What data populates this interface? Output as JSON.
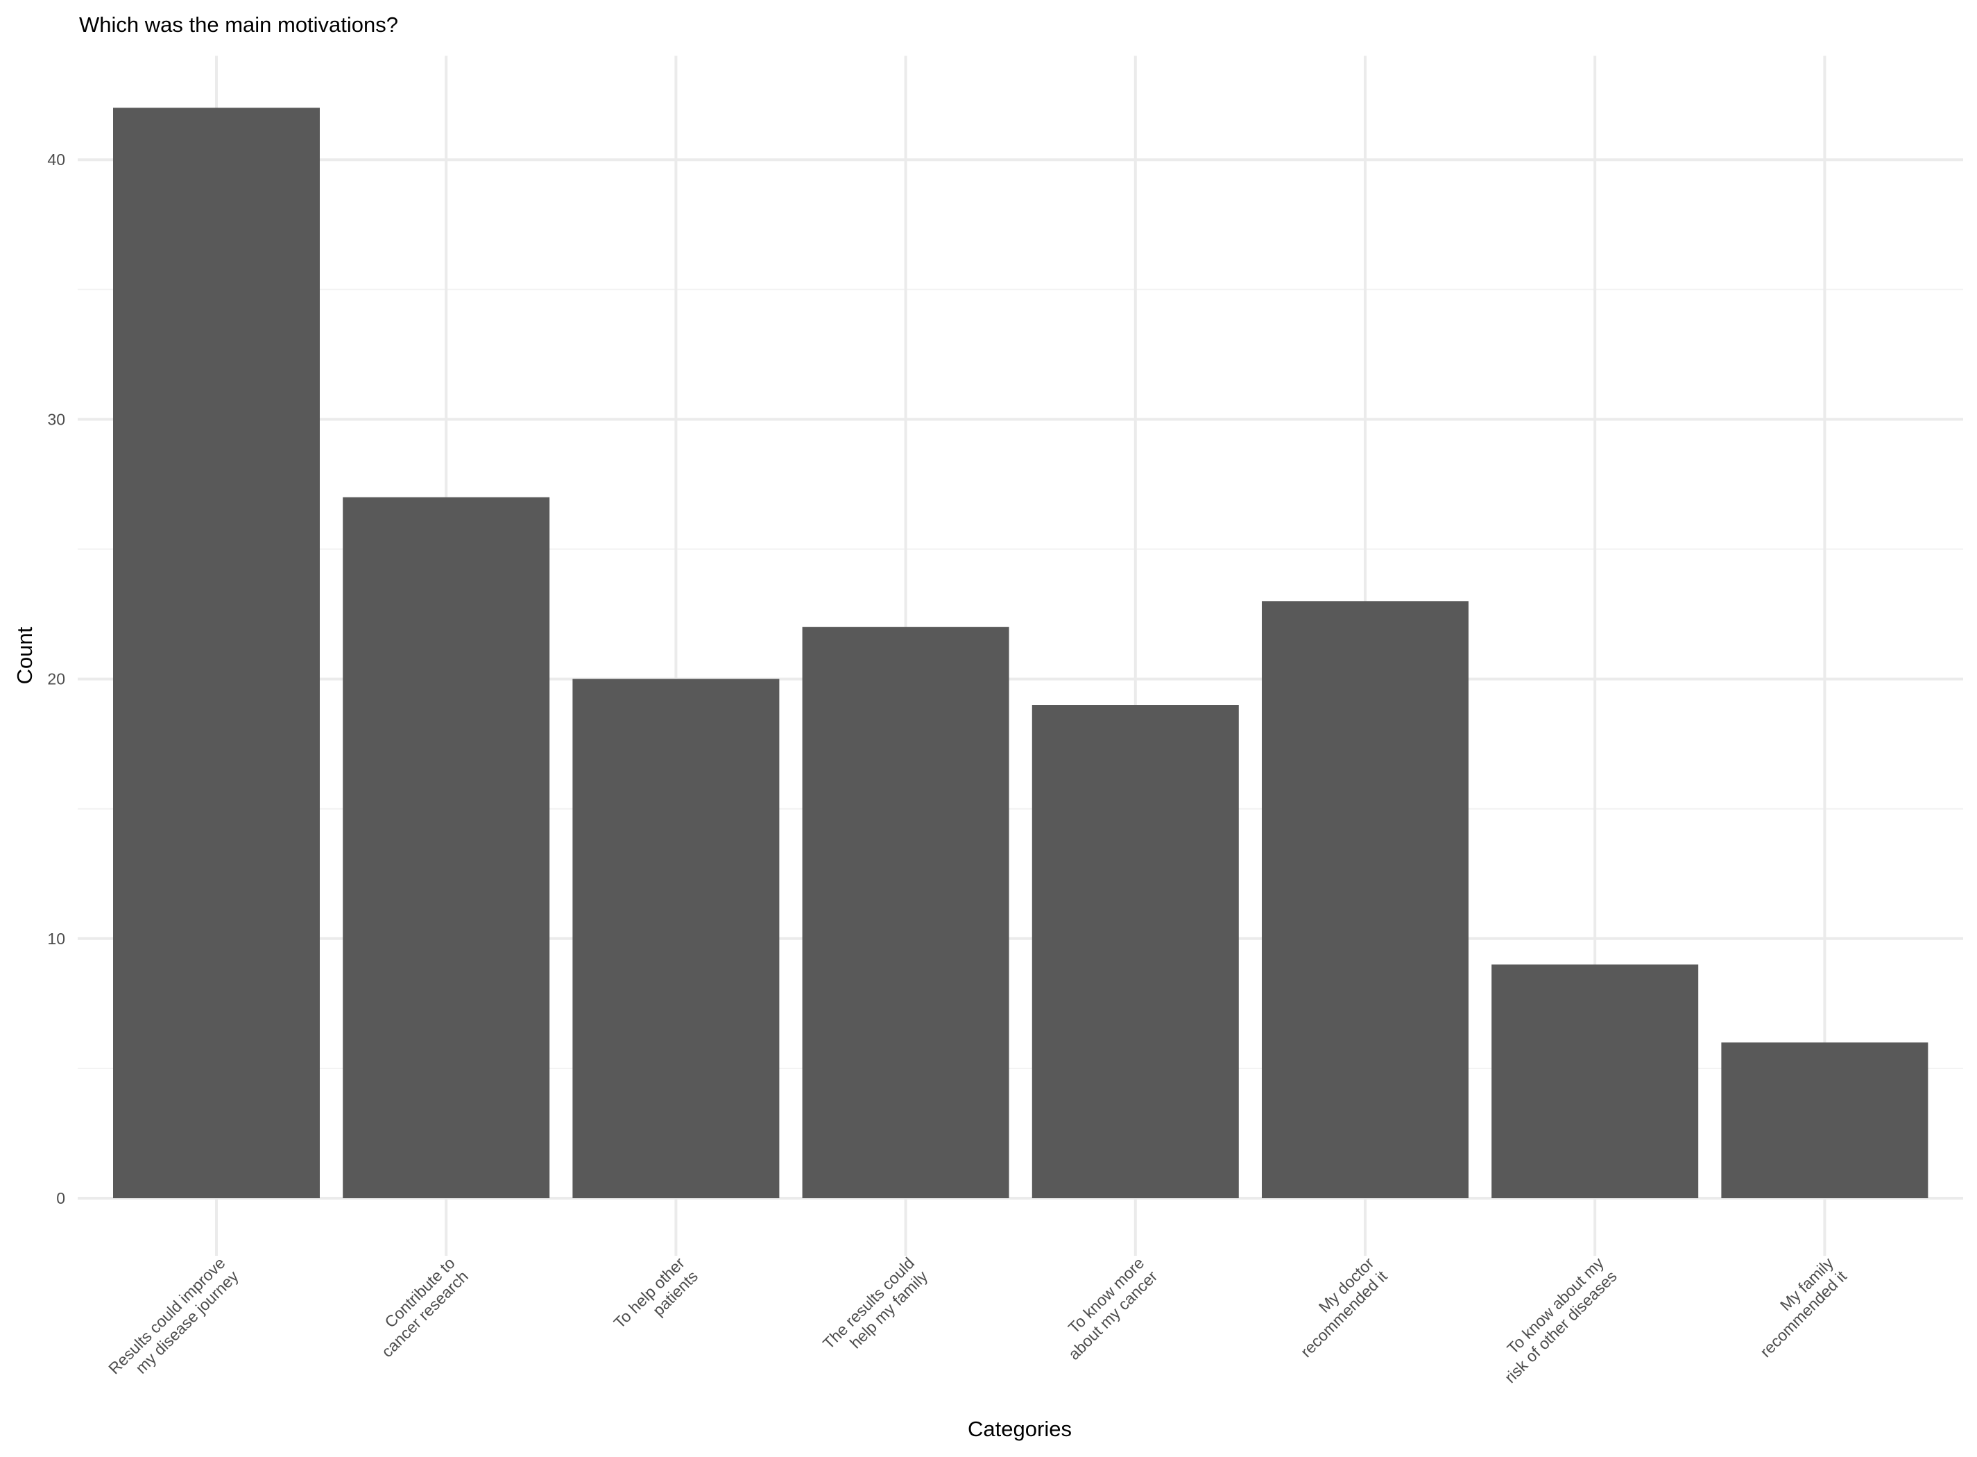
{
  "chart_data": {
    "type": "bar",
    "title": "Which was the main motivations?",
    "xlabel": "Categories",
    "ylabel": "Count",
    "ylim": [
      0,
      44
    ],
    "yticks": [
      0,
      10,
      20,
      30,
      40
    ],
    "grid": true,
    "legend": "none",
    "bar_color": "#595959",
    "categories": [
      [
        "Results could improve",
        "my disease journey"
      ],
      [
        "Contribute to",
        "cancer research"
      ],
      [
        "To help other",
        "patients"
      ],
      [
        "The results could",
        "help my family"
      ],
      [
        "To know more",
        "about my cancer"
      ],
      [
        "My doctor",
        "recommended it"
      ],
      [
        "To know about my",
        "risk of other diseases"
      ],
      [
        "My family",
        "recommended it"
      ]
    ],
    "values": [
      42,
      27,
      20,
      22,
      19,
      23,
      9,
      6
    ]
  }
}
